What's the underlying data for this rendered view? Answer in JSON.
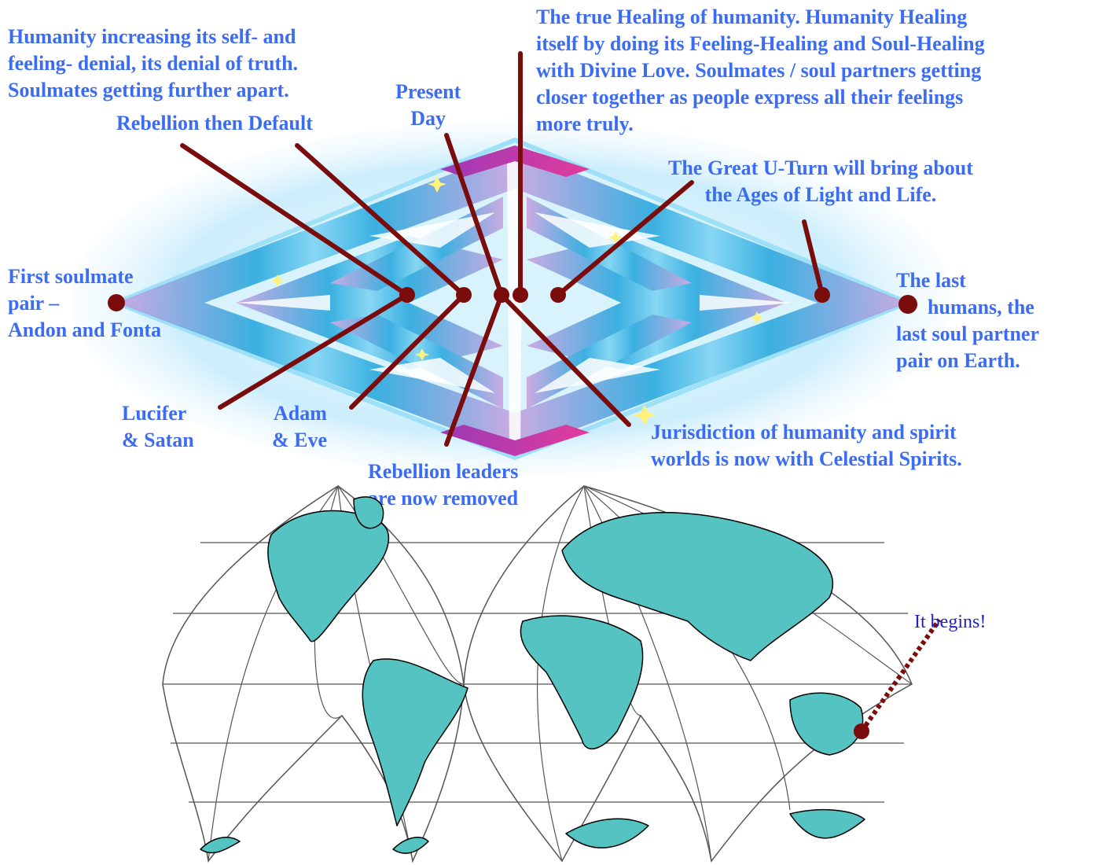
{
  "labels": {
    "denial": [
      "Humanity increasing its self- and",
      "feeling- denial, its denial of truth.",
      "Soulmates getting further apart."
    ],
    "rebellion_default": [
      "Rebellion then Default"
    ],
    "present_day": [
      "Present",
      "Day"
    ],
    "true_healing": [
      "The true Healing of humanity.  Humanity Healing",
      "itself by doing its Feeling-Healing and Soul-Healing",
      "with Divine Love. Soulmates / soul partners getting",
      "closer together as people express all their feelings",
      "more truly."
    ],
    "great_uturn": [
      "The Great U-Turn will bring about",
      "the Ages of Light and Life."
    ],
    "first_pair": [
      "First soulmate",
      "pair –",
      "Andon and Fonta"
    ],
    "last_humans": [
      "The last",
      "humans, the",
      "last soul partner",
      "pair on Earth."
    ],
    "lucifer": [
      "Lucifer",
      "& Satan"
    ],
    "adam_eve": [
      "Adam",
      "& Eve"
    ],
    "rebellion_leaders": [
      "Rebellion leaders",
      "are now removed"
    ],
    "jurisdiction": [
      "Jurisdiction of humanity and spirit",
      "worlds is now with Celestial Spirits."
    ]
  },
  "map_note": "It begins!",
  "colors": {
    "label_text": "#3b6cf2",
    "note_text": "#1f1fd0",
    "pointer_line": "#7a0c0c",
    "marker_dot": "#7a0c0c",
    "diamond_cyan": "#2aa9df",
    "diamond_light": "#e8f8fd",
    "diamond_magenta": "#d62f9b",
    "land": "#55c3c1",
    "graticule": "#555555"
  },
  "icons": [
    "sparkle-star-icon"
  ]
}
